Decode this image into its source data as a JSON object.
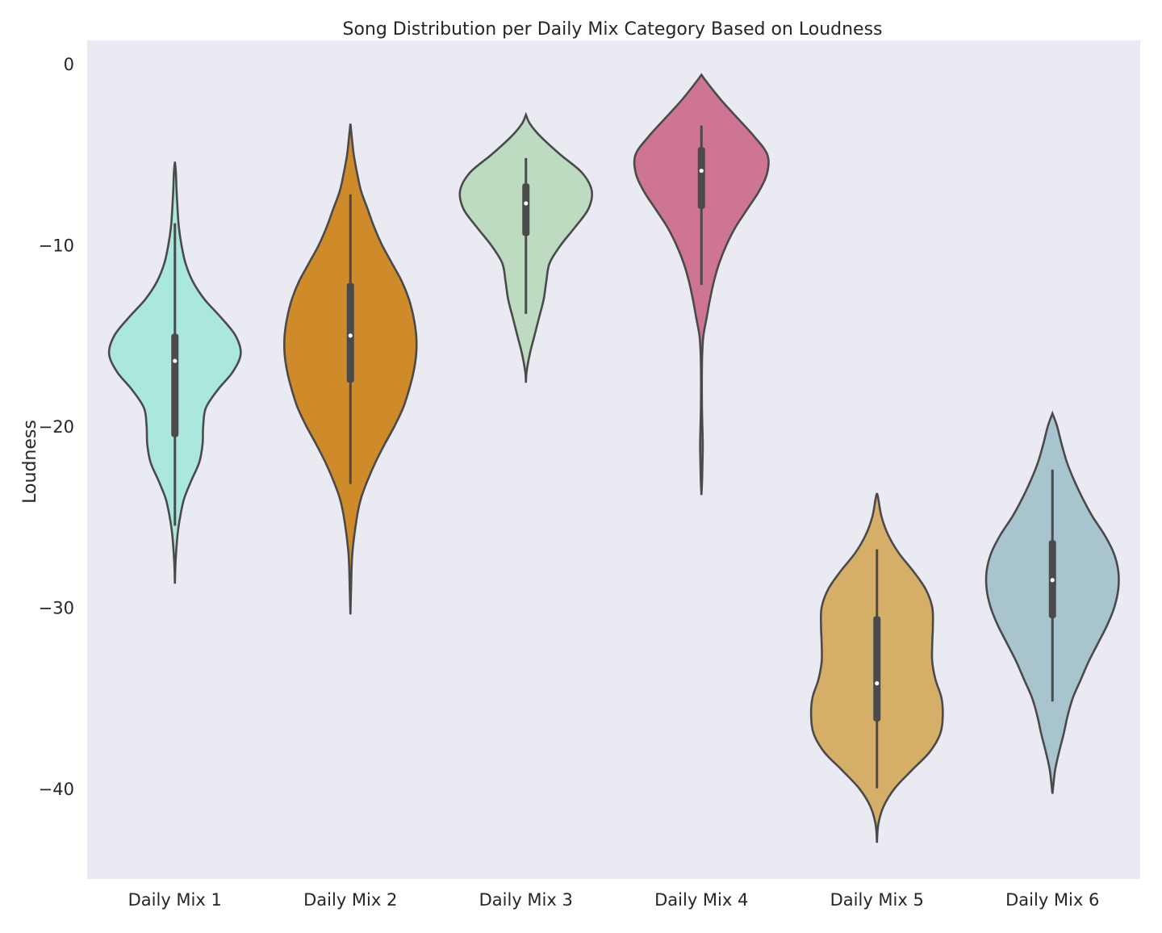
{
  "chart_data": {
    "type": "violin",
    "title": "Song Distribution per Daily Mix Category Based on Loudness",
    "xlabel": "",
    "ylabel": "Loudness",
    "ylim": [
      -45,
      1.3
    ],
    "yticks": [
      0,
      -10,
      -20,
      -30,
      -40
    ],
    "ytick_labels": [
      "0",
      "−10",
      "−20",
      "−30",
      "−40"
    ],
    "grid": false,
    "categories": [
      "Daily Mix 1",
      "Daily Mix 2",
      "Daily Mix 3",
      "Daily Mix 4",
      "Daily Mix 5",
      "Daily Mix 6"
    ],
    "series": [
      {
        "category": "Daily Mix 1",
        "color": "#aae8dd",
        "median": -16.4,
        "q1": -20.6,
        "q3": -14.9,
        "whisker_low": -25.5,
        "whisker_high": -8.8,
        "profile": [
          [
            -28.7,
            0.0
          ],
          [
            -27.5,
            0.01
          ],
          [
            -26.0,
            0.04
          ],
          [
            -25.0,
            0.08
          ],
          [
            -24.0,
            0.14
          ],
          [
            -23.0,
            0.25
          ],
          [
            -22.0,
            0.37
          ],
          [
            -21.0,
            0.42
          ],
          [
            -20.0,
            0.43
          ],
          [
            -19.0,
            0.47
          ],
          [
            -18.0,
            0.65
          ],
          [
            -17.0,
            0.88
          ],
          [
            -16.0,
            1.0
          ],
          [
            -15.0,
            0.92
          ],
          [
            -14.0,
            0.7
          ],
          [
            -13.0,
            0.45
          ],
          [
            -12.0,
            0.27
          ],
          [
            -11.0,
            0.16
          ],
          [
            -10.0,
            0.1
          ],
          [
            -9.0,
            0.06
          ],
          [
            -8.0,
            0.04
          ],
          [
            -7.0,
            0.025
          ],
          [
            -6.0,
            0.015
          ],
          [
            -5.4,
            0.0
          ]
        ]
      },
      {
        "category": "Daily Mix 2",
        "color": "#cf8a2a",
        "median": -15.0,
        "q1": -17.6,
        "q3": -12.1,
        "whisker_low": -23.2,
        "whisker_high": -7.2,
        "profile": [
          [
            -30.4,
            0.0
          ],
          [
            -29.0,
            0.01
          ],
          [
            -27.0,
            0.03
          ],
          [
            -25.0,
            0.1
          ],
          [
            -24.0,
            0.16
          ],
          [
            -23.0,
            0.26
          ],
          [
            -22.0,
            0.38
          ],
          [
            -21.0,
            0.52
          ],
          [
            -20.0,
            0.67
          ],
          [
            -19.0,
            0.8
          ],
          [
            -18.0,
            0.89
          ],
          [
            -17.0,
            0.96
          ],
          [
            -16.0,
            1.0
          ],
          [
            -15.0,
            1.0
          ],
          [
            -14.0,
            0.96
          ],
          [
            -13.0,
            0.89
          ],
          [
            -12.0,
            0.78
          ],
          [
            -11.0,
            0.63
          ],
          [
            -10.0,
            0.48
          ],
          [
            -9.0,
            0.36
          ],
          [
            -8.0,
            0.26
          ],
          [
            -7.0,
            0.16
          ],
          [
            -6.0,
            0.1
          ],
          [
            -5.0,
            0.05
          ],
          [
            -4.0,
            0.02
          ],
          [
            -3.3,
            0.0
          ]
        ]
      },
      {
        "category": "Daily Mix 3",
        "color": "#bcdbc0",
        "median": -7.7,
        "q1": -9.5,
        "q3": -6.6,
        "whisker_low": -13.8,
        "whisker_high": -5.2,
        "profile": [
          [
            -17.6,
            0.0
          ],
          [
            -17.0,
            0.01
          ],
          [
            -16.0,
            0.06
          ],
          [
            -15.0,
            0.13
          ],
          [
            -14.0,
            0.2
          ],
          [
            -13.0,
            0.27
          ],
          [
            -12.0,
            0.31
          ],
          [
            -11.0,
            0.36
          ],
          [
            -10.0,
            0.53
          ],
          [
            -9.0,
            0.75
          ],
          [
            -8.0,
            0.95
          ],
          [
            -7.0,
            1.0
          ],
          [
            -6.0,
            0.85
          ],
          [
            -5.0,
            0.52
          ],
          [
            -4.0,
            0.22
          ],
          [
            -3.3,
            0.06
          ],
          [
            -2.8,
            0.0
          ]
        ]
      },
      {
        "category": "Daily Mix 4",
        "color": "#cd7593",
        "median": -5.9,
        "q1": -8.0,
        "q3": -4.6,
        "whisker_low": -12.2,
        "whisker_high": -3.4,
        "profile": [
          [
            -23.8,
            0.0
          ],
          [
            -23.0,
            0.01
          ],
          [
            -22.0,
            0.016
          ],
          [
            -21.0,
            0.02
          ],
          [
            -20.0,
            0.014
          ],
          [
            -19.0,
            0.008
          ],
          [
            -18.0,
            0.006
          ],
          [
            -17.0,
            0.007
          ],
          [
            -16.0,
            0.012
          ],
          [
            -15.0,
            0.03
          ],
          [
            -14.0,
            0.08
          ],
          [
            -13.0,
            0.13
          ],
          [
            -12.0,
            0.19
          ],
          [
            -11.0,
            0.27
          ],
          [
            -10.0,
            0.38
          ],
          [
            -9.0,
            0.52
          ],
          [
            -8.0,
            0.7
          ],
          [
            -7.0,
            0.88
          ],
          [
            -6.0,
            1.0
          ],
          [
            -5.0,
            1.0
          ],
          [
            -4.0,
            0.8
          ],
          [
            -3.0,
            0.55
          ],
          [
            -2.0,
            0.3
          ],
          [
            -1.0,
            0.08
          ],
          [
            -0.6,
            0.0
          ]
        ]
      },
      {
        "category": "Daily Mix 5",
        "color": "#d5ae67",
        "median": -34.2,
        "q1": -36.3,
        "q3": -30.5,
        "whisker_low": -40.0,
        "whisker_high": -26.8,
        "profile": [
          [
            -43.0,
            0.0
          ],
          [
            -42.0,
            0.02
          ],
          [
            -41.0,
            0.1
          ],
          [
            -40.0,
            0.27
          ],
          [
            -39.0,
            0.53
          ],
          [
            -38.0,
            0.8
          ],
          [
            -37.0,
            0.96
          ],
          [
            -36.0,
            1.0
          ],
          [
            -35.0,
            0.98
          ],
          [
            -34.0,
            0.89
          ],
          [
            -33.0,
            0.84
          ],
          [
            -32.0,
            0.84
          ],
          [
            -31.0,
            0.85
          ],
          [
            -30.0,
            0.84
          ],
          [
            -29.0,
            0.74
          ],
          [
            -28.0,
            0.55
          ],
          [
            -27.0,
            0.33
          ],
          [
            -26.0,
            0.17
          ],
          [
            -25.0,
            0.07
          ],
          [
            -24.0,
            0.02
          ],
          [
            -23.7,
            0.0
          ]
        ]
      },
      {
        "category": "Daily Mix 6",
        "color": "#a8c4ce",
        "median": -28.5,
        "q1": -30.6,
        "q3": -26.3,
        "whisker_low": -35.2,
        "whisker_high": -22.4,
        "profile": [
          [
            -40.3,
            0.0
          ],
          [
            -39.0,
            0.04
          ],
          [
            -38.0,
            0.1
          ],
          [
            -37.0,
            0.17
          ],
          [
            -36.0,
            0.23
          ],
          [
            -35.0,
            0.31
          ],
          [
            -34.0,
            0.43
          ],
          [
            -33.0,
            0.55
          ],
          [
            -32.0,
            0.69
          ],
          [
            -31.0,
            0.83
          ],
          [
            -30.0,
            0.94
          ],
          [
            -29.0,
            1.0
          ],
          [
            -28.0,
            1.0
          ],
          [
            -27.0,
            0.93
          ],
          [
            -26.0,
            0.79
          ],
          [
            -25.0,
            0.61
          ],
          [
            -24.0,
            0.46
          ],
          [
            -23.0,
            0.33
          ],
          [
            -22.0,
            0.22
          ],
          [
            -21.0,
            0.14
          ],
          [
            -20.0,
            0.07
          ],
          [
            -19.3,
            0.0
          ]
        ]
      }
    ]
  }
}
